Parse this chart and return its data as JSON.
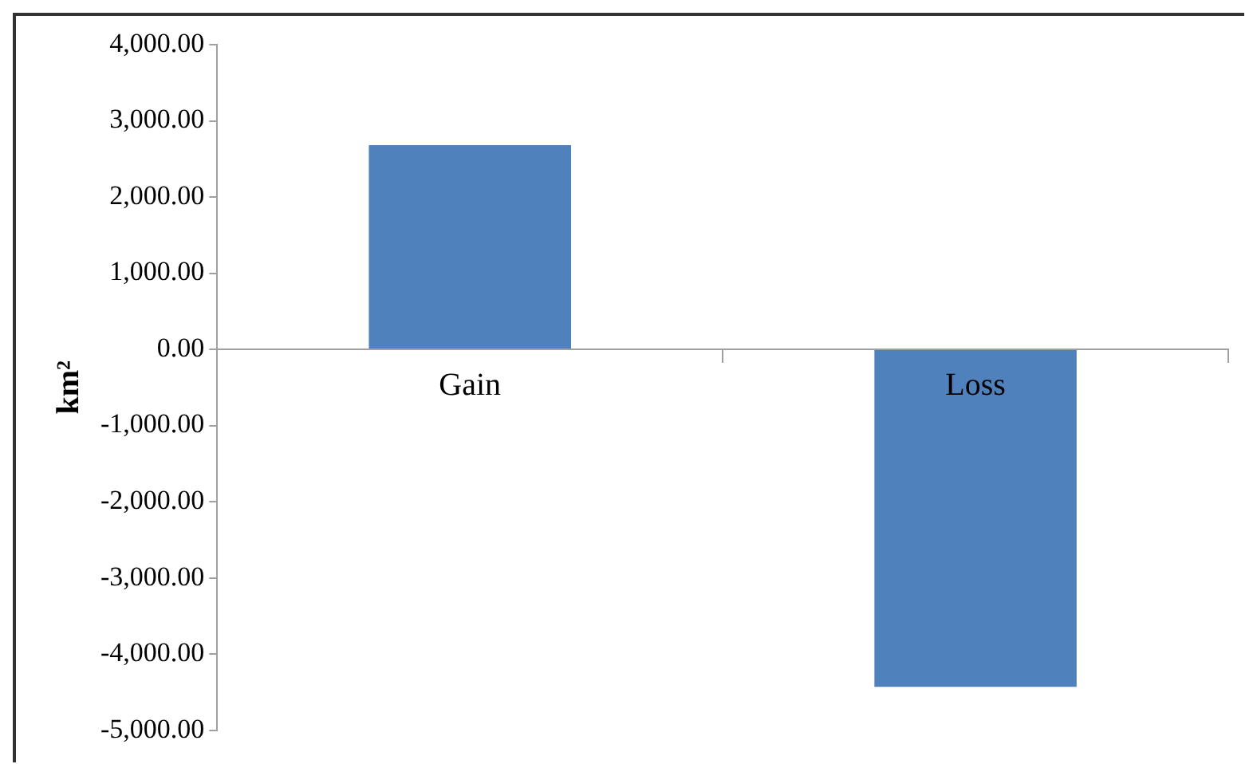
{
  "chart_data": {
    "type": "bar",
    "ylabel": "km²",
    "categories": [
      "Gain",
      "Loss"
    ],
    "values": [
      2680,
      -4430
    ],
    "color": "#4f81bd",
    "ylim": [
      -5000,
      4000
    ],
    "yticks": [
      {
        "value": -5000,
        "label": "-5,000.00"
      },
      {
        "value": -4000,
        "label": "-4,000.00"
      },
      {
        "value": -3000,
        "label": "-3,000.00"
      },
      {
        "value": -2000,
        "label": "-2,000.00"
      },
      {
        "value": -1000,
        "label": "-1,000.00"
      },
      {
        "value": 0,
        "label": "0.00"
      },
      {
        "value": 1000,
        "label": "1,000.00"
      },
      {
        "value": 2000,
        "label": "2,000.00"
      },
      {
        "value": 3000,
        "label": "3,000.00"
      },
      {
        "value": 4000,
        "label": "4,000.00"
      }
    ],
    "grid": false,
    "legend": false
  }
}
